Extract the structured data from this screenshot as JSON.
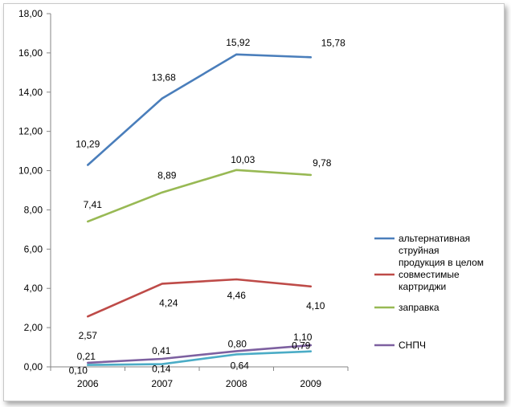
{
  "chart_data": {
    "type": "line",
    "categories": [
      "2006",
      "2007",
      "2008",
      "2009"
    ],
    "ylim": [
      0,
      18
    ],
    "yticks": [
      "0,00",
      "2,00",
      "4,00",
      "6,00",
      "8,00",
      "10,00",
      "12,00",
      "14,00",
      "16,00",
      "18,00"
    ],
    "grid": false,
    "legend_position": "right",
    "series": [
      {
        "name": "альтернативная струйная продукция в целом",
        "legend_lines": [
          "альтернативная",
          "струйная",
          "продукция в целом"
        ],
        "color": "#4a7ebb",
        "values": [
          10.29,
          13.68,
          15.92,
          15.78
        ],
        "labels": [
          "10,29",
          "13,68",
          "15,92",
          "15,78"
        ]
      },
      {
        "name": "совместимые картриджи",
        "legend_lines": [
          "совместимые",
          "картриджи"
        ],
        "color": "#be4b48",
        "values": [
          2.57,
          4.24,
          4.46,
          4.1
        ],
        "labels": [
          "2,57",
          "4,24",
          "4,46",
          "4,10"
        ]
      },
      {
        "name": "заправка",
        "legend_lines": [
          "заправка"
        ],
        "color": "#98b954",
        "values": [
          7.41,
          8.89,
          10.03,
          9.78
        ],
        "labels": [
          "7,41",
          "8,89",
          "10,03",
          "9,78"
        ]
      },
      {
        "name": "СНПЧ",
        "legend_lines": [
          "СНПЧ"
        ],
        "color": "#7d60a0",
        "values": [
          0.21,
          0.41,
          0.8,
          1.1
        ],
        "labels": [
          "0,21",
          "0,41",
          "0,80",
          "1,10"
        ]
      },
      {
        "color": "#4bacc6",
        "values": [
          0.1,
          0.14,
          0.64,
          0.79
        ],
        "labels": [
          "0,10",
          "0,14",
          "0,64",
          "0,79"
        ]
      }
    ]
  }
}
